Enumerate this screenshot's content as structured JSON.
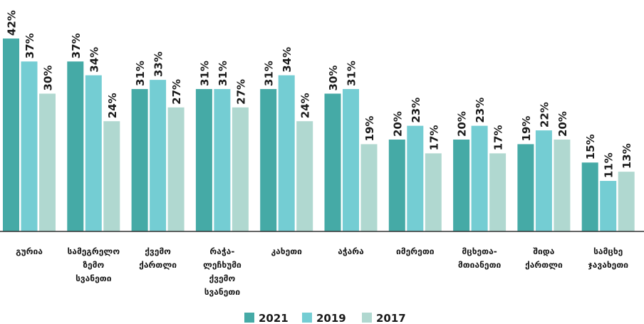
{
  "chart_data": {
    "type": "bar",
    "categories": [
      "გურია",
      "სამეგრელო\nზემო\nსვანეთი",
      "ქვემო\nქართლი",
      "რაჭა-\nლეჩხუმი\nქვემო\nსვანეთი",
      "კახეთი",
      "აჭარა",
      "იმერეთი",
      "მცხეთა-\nმთიანეთი",
      "შიდა\nქართლი",
      "სამცხე\nჯავახეთი"
    ],
    "series": [
      {
        "name": "2021",
        "color": "#45aaa6",
        "values": [
          42,
          37,
          31,
          31,
          31,
          30,
          20,
          20,
          19,
          15
        ],
        "value_labels": [
          "42%",
          "37%",
          "31%",
          "31%",
          "31%",
          "30%",
          "20%",
          "20%",
          "19%",
          "15%"
        ]
      },
      {
        "name": "2019",
        "color": "#74cdd3",
        "values": [
          37,
          34,
          33,
          31,
          34,
          31,
          23,
          23,
          22,
          11
        ],
        "value_labels": [
          "37%",
          "34%",
          "33%",
          "31%",
          "34%",
          "31%",
          "23%",
          "23%",
          "22%",
          "11%"
        ]
      },
      {
        "name": "2017",
        "color": "#b0d8d0",
        "values": [
          30,
          24,
          27,
          27,
          24,
          19,
          17,
          17,
          20,
          13
        ],
        "value_labels": [
          "30%",
          "24%",
          "27%",
          "27%",
          "24%",
          "19%",
          "17%",
          "17%",
          "20%",
          "13%"
        ]
      }
    ],
    "legend": "bottom"
  }
}
